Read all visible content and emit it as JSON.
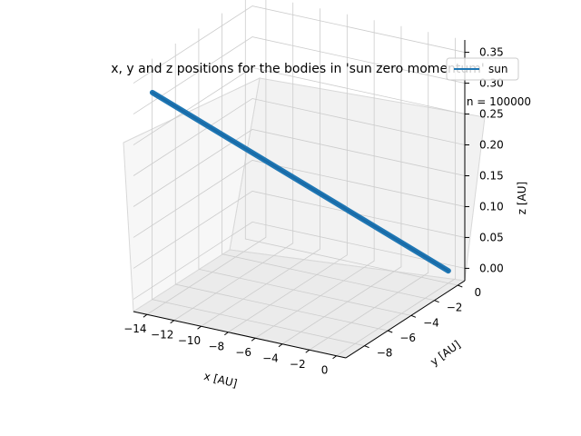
{
  "chart_data": {
    "type": "line",
    "projection": "3d",
    "title": "x, y and z positions for the bodies in 'sun zero momentum'",
    "annotation": "n = 100000",
    "xlabel": "x [AU]",
    "ylabel": "y [AU]",
    "zlabel": "z [AU]",
    "x_ticks": [
      "−14",
      "−12",
      "−10",
      "−8",
      "−6",
      "−4",
      "−2",
      "0"
    ],
    "y_ticks": [
      "0",
      "−2",
      "−4",
      "−6",
      "−8"
    ],
    "z_ticks": [
      "0.00",
      "0.05",
      "0.10",
      "0.15",
      "0.20",
      "0.25",
      "0.30",
      "0.35"
    ],
    "xlim": [
      -15,
      0.7
    ],
    "ylim": [
      -9.6,
      0.6
    ],
    "zlim": [
      -0.02,
      0.37
    ],
    "grid": true,
    "legend": {
      "placement": "top-right",
      "entries": [
        "sun"
      ]
    },
    "series": [
      {
        "name": "sun",
        "color": "#1f77b4",
        "points": [
          [
            -14.2,
            -8.9,
            0.33
          ],
          [
            0.0,
            0.0,
            0.0
          ]
        ]
      }
    ]
  }
}
